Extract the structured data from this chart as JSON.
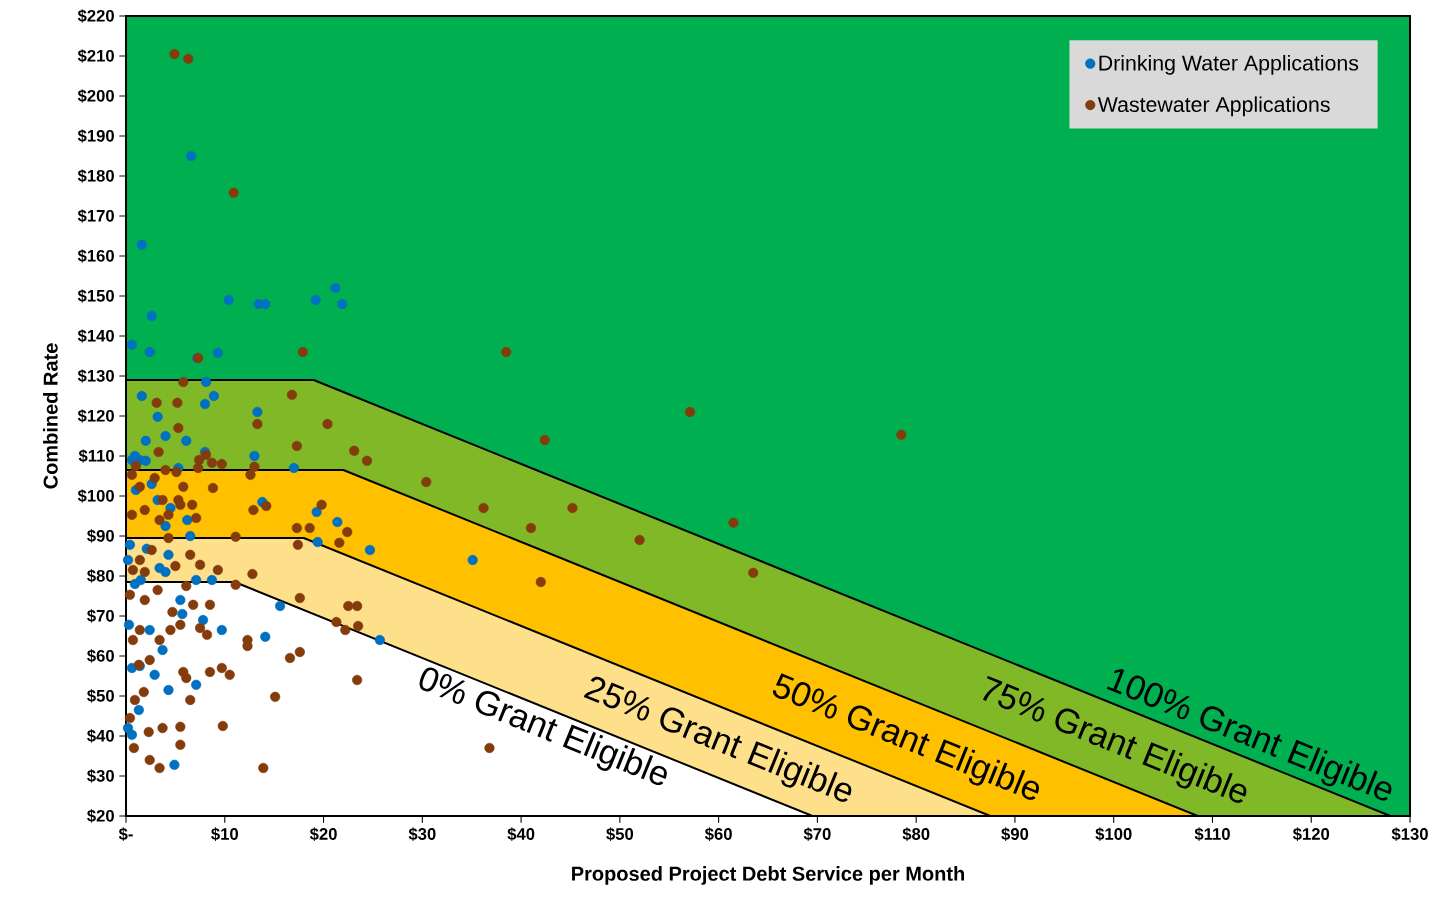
{
  "chart_data": {
    "type": "scatter",
    "xlabel": "Proposed Project Debt Service per Month",
    "ylabel": "Combined Rate",
    "xlim": [
      0,
      130
    ],
    "ylim": [
      20,
      220
    ],
    "xticks": [
      {
        "value": 0,
        "label": "$-"
      },
      {
        "value": 10,
        "label": "$10"
      },
      {
        "value": 20,
        "label": "$20"
      },
      {
        "value": 30,
        "label": "$30"
      },
      {
        "value": 40,
        "label": "$40"
      },
      {
        "value": 50,
        "label": "$50"
      },
      {
        "value": 60,
        "label": "$60"
      },
      {
        "value": 70,
        "label": "$70"
      },
      {
        "value": 80,
        "label": "$80"
      },
      {
        "value": 90,
        "label": "$90"
      },
      {
        "value": 100,
        "label": "$100"
      },
      {
        "value": 110,
        "label": "$110"
      },
      {
        "value": 120,
        "label": "$120"
      },
      {
        "value": 130,
        "label": "$130"
      }
    ],
    "yticks": [
      {
        "value": 20,
        "label": "$20"
      },
      {
        "value": 30,
        "label": "$30"
      },
      {
        "value": 40,
        "label": "$40"
      },
      {
        "value": 50,
        "label": "$50"
      },
      {
        "value": 60,
        "label": "$60"
      },
      {
        "value": 70,
        "label": "$70"
      },
      {
        "value": 80,
        "label": "$80"
      },
      {
        "value": 90,
        "label": "$90"
      },
      {
        "value": 100,
        "label": "$100"
      },
      {
        "value": 110,
        "label": "$110"
      },
      {
        "value": 120,
        "label": "$120"
      },
      {
        "value": 130,
        "label": "$130"
      },
      {
        "value": 140,
        "label": "$140"
      },
      {
        "value": 150,
        "label": "$150"
      },
      {
        "value": 160,
        "label": "$160"
      },
      {
        "value": 170,
        "label": "$170"
      },
      {
        "value": 180,
        "label": "$180"
      },
      {
        "value": 190,
        "label": "$190"
      },
      {
        "value": 200,
        "label": "$200"
      },
      {
        "value": 210,
        "label": "$210"
      },
      {
        "value": 220,
        "label": "$220"
      }
    ],
    "legend": "top right",
    "marker": "circle",
    "bands": [
      {
        "axis": "y",
        "from": 20,
        "to": 220,
        "color": "#00b050",
        "label": "100% Grant Eligible"
      }
    ],
    "series": [
      {
        "name": "75% Grant Eligible",
        "type": "area",
        "marker": "none",
        "color": "#80b828",
        "x": [
          0,
          19,
          128
        ],
        "values": [
          129,
          129,
          20
        ]
      },
      {
        "name": "50% Grant Eligible",
        "type": "area",
        "marker": "none",
        "color": "#ffc000",
        "x": [
          0,
          22,
          108.5
        ],
        "values": [
          106.5,
          106.5,
          20
        ]
      },
      {
        "name": "25% Grant Eligible",
        "type": "area",
        "marker": "none",
        "color": "#ffe08a",
        "x": [
          0,
          18,
          87.5
        ],
        "values": [
          89.5,
          89.5,
          20
        ]
      },
      {
        "name": "0% Grant Eligible",
        "type": "area",
        "marker": "none",
        "color": "#ffffff",
        "x": [
          0,
          11,
          69.5
        ],
        "values": [
          78.5,
          78.5,
          20
        ]
      },
      {
        "name": "Drinking Water Applications",
        "color": "#0070c0",
        "x": [
          0.6,
          1.6,
          6.6,
          2.6,
          2.4,
          10.4,
          13.4,
          14.1,
          19.2,
          21.2,
          21.9,
          9.3,
          7.2,
          1.6,
          8.9,
          8,
          8.1,
          13.3,
          3.2,
          4,
          2,
          6.1,
          0.6,
          1.4,
          2,
          0.9,
          13,
          17,
          13.8,
          19.3,
          21.4,
          19.4,
          24.7,
          35.1,
          14.1,
          25.7,
          15.6,
          0.4,
          0.2,
          0.9,
          1.5,
          3.4,
          4.3,
          6.2,
          6.5,
          8.7,
          7.1,
          5.5,
          5.7,
          7.8,
          9.7,
          0.6,
          1.4,
          2.9,
          4.3,
          1.3,
          0.2,
          0.6,
          4.9,
          7.1,
          4,
          2.1,
          2.6,
          1,
          3.2,
          4.5,
          5.3,
          0.3,
          3.7,
          2.4,
          4,
          8
        ],
        "values": [
          137.8,
          162.8,
          185,
          145,
          136,
          149,
          148,
          148,
          149,
          152,
          148,
          135.8,
          134.5,
          125,
          125,
          123,
          128.5,
          121,
          119.8,
          115,
          113.8,
          113.8,
          109,
          109,
          108.8,
          110,
          110,
          107,
          98.5,
          96,
          93.5,
          88.5,
          86.5,
          84,
          64.8,
          64,
          72.5,
          87.8,
          84,
          78,
          79,
          82,
          85.3,
          94,
          90,
          79,
          79,
          74,
          70.5,
          69,
          66.5,
          57,
          57.5,
          55.3,
          51.5,
          46.5,
          42,
          40.3,
          32.8,
          52.8,
          81,
          86.8,
          103,
          101.5,
          99,
          97,
          107,
          67.8,
          61.5,
          66.5,
          92.5,
          111
        ]
      },
      {
        "name": "Wastewater Applications",
        "color": "#843c0c",
        "x": [
          4.9,
          6.3,
          10.9,
          17.9,
          38.5,
          7.3,
          5.8,
          16.8,
          3.1,
          5.2,
          13.3,
          20.4,
          5.3,
          17.3,
          23.1,
          24.4,
          42.4,
          57.1,
          78.5,
          3.3,
          1,
          4,
          5.1,
          7.4,
          8.7,
          9.7,
          13,
          8.1,
          12.6,
          30.4,
          5.8,
          6.7,
          5.3,
          19.8,
          14.2,
          12.9,
          36.2,
          45.2,
          41,
          17.3,
          18.6,
          22.4,
          21.6,
          17.4,
          52,
          61.5,
          11.1,
          8.8,
          7.1,
          5.5,
          3.4,
          4.3,
          6.5,
          12.8,
          42,
          63.5,
          11.1,
          7.5,
          9.3,
          6.1,
          8.5,
          6.8,
          3.2,
          1.9,
          0.4,
          17.6,
          22.5,
          23.4,
          21.3,
          22.2,
          23.5,
          12.3,
          12.3,
          7.5,
          8.2,
          5.5,
          4.5,
          16.6,
          17.6,
          9.7,
          8.5,
          10.5,
          5.8,
          6.1,
          3.4,
          2.4,
          1.3,
          23.4,
          15.1,
          6.5,
          1.8,
          0.9,
          0.4,
          3.7,
          5.5,
          9.8,
          2.3,
          0.8,
          5.5,
          2.4,
          3.4,
          13.9,
          36.8,
          0.6,
          1.4,
          2.9,
          1.9,
          0.6,
          4.3,
          2.6,
          1.4,
          0.7,
          1.9,
          5,
          4.7,
          0.7,
          1.4,
          7.3,
          3.7
        ],
        "values": [
          210.5,
          209.3,
          175.8,
          136,
          136,
          134.5,
          128.5,
          125.3,
          123.3,
          123.3,
          118,
          118,
          117,
          112.5,
          111.3,
          108.8,
          114,
          121,
          115.3,
          111,
          107.5,
          106.5,
          106,
          109,
          108.3,
          108,
          107.3,
          110.3,
          105.3,
          103.5,
          102.3,
          97.8,
          99,
          97.8,
          97.5,
          96.5,
          97,
          97,
          92,
          92,
          92,
          91,
          88.3,
          87.8,
          89,
          93.3,
          89.8,
          102,
          94.5,
          97.8,
          94,
          89.5,
          85.3,
          80.5,
          78.5,
          80.8,
          77.8,
          82.8,
          81.5,
          77.5,
          72.8,
          72.8,
          76.5,
          74,
          75.3,
          74.5,
          72.5,
          72.5,
          68.5,
          66.5,
          67.5,
          64,
          62.5,
          67,
          65.3,
          67.8,
          66.5,
          59.5,
          61,
          57,
          56,
          55.3,
          56,
          54.5,
          64,
          59,
          57.8,
          54,
          49.8,
          49,
          51,
          49,
          44.5,
          42,
          42.3,
          42.5,
          41,
          37,
          37.8,
          34,
          32,
          32,
          37,
          105.3,
          102.3,
          104.5,
          96.5,
          95.3,
          95.3,
          86.5,
          84,
          81.5,
          81,
          82.5,
          71,
          64,
          66.5,
          107,
          99
        ]
      }
    ]
  }
}
